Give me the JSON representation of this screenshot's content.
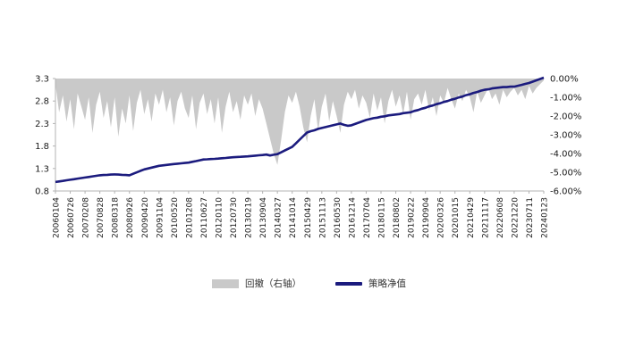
{
  "chart_data": {
    "type": "composite",
    "title": "",
    "subtype": [
      "area-drawdown-right-axis",
      "line-nav-left-axis"
    ],
    "x_tick_labels": [
      "20060104",
      "20060726",
      "20070208",
      "20070828",
      "20080318",
      "20080926",
      "20090420",
      "20091104",
      "20100520",
      "20101208",
      "20110627",
      "20120110",
      "20120730",
      "20130219",
      "20130904",
      "20140327",
      "20141014",
      "20150429",
      "20151113",
      "20160530",
      "20161214",
      "20170704",
      "20180115",
      "20180802",
      "20190222",
      "20190904",
      "20200326",
      "20201015",
      "20210429",
      "20211117",
      "20220608",
      "20221220",
      "20230711",
      "20240123"
    ],
    "left_axis": {
      "min": 0.8,
      "max": 3.3,
      "ticks": [
        0.8,
        1.3,
        1.8,
        2.3,
        2.8,
        3.3
      ],
      "tick_labels": [
        "0.8",
        "1.3",
        "1.8",
        "2.3",
        "2.8",
        "3.3"
      ]
    },
    "right_axis": {
      "min": -6,
      "max": 0,
      "ticks": [
        0,
        -1,
        -2,
        -3,
        -4,
        -5,
        -6
      ],
      "tick_labels": [
        "0.00%",
        "-1.00%",
        "-2.00%",
        "-3.00%",
        "-4.00%",
        "-5.00%",
        "-6.00%"
      ]
    },
    "grid": false,
    "legend_position": "bottom",
    "colors": {
      "drawdown": "#c9c9c9",
      "nav_line": "#1b1b7e",
      "axis": "#b3b3b3",
      "tick_text": "#1a1a1a"
    },
    "series": [
      {
        "name": "回撤（右轴）",
        "type": "area",
        "axis": "right",
        "color": "#c9c9c9",
        "values": [
          -0.3,
          -1.8,
          -0.9,
          -2.3,
          -1.1,
          -2.7,
          -0.8,
          -1.5,
          -2.2,
          -1.0,
          -2.9,
          -1.4,
          -0.7,
          -2.1,
          -1.2,
          -2.6,
          -1.0,
          -3.1,
          -1.6,
          -2.4,
          -0.9,
          -2.8,
          -1.3,
          -0.6,
          -1.9,
          -1.1,
          -2.3,
          -0.8,
          -1.4,
          -0.6,
          -1.8,
          -1.0,
          -2.5,
          -1.2,
          -0.7,
          -1.6,
          -2.1,
          -0.9,
          -2.7,
          -1.3,
          -0.8,
          -1.9,
          -1.1,
          -2.4,
          -1.0,
          -2.9,
          -1.5,
          -0.7,
          -1.8,
          -1.2,
          -2.2,
          -0.9,
          -1.4,
          -0.8,
          -2.0,
          -1.1,
          -1.6,
          -2.4,
          -3.2,
          -4.0,
          -4.6,
          -3.3,
          -1.8,
          -0.9,
          -1.3,
          -0.7,
          -1.5,
          -2.6,
          -3.4,
          -2.0,
          -1.1,
          -2.8,
          -1.5,
          -0.8,
          -2.3,
          -1.2,
          -2.0,
          -2.9,
          -1.4,
          -0.7,
          -1.1,
          -0.6,
          -1.6,
          -0.9,
          -1.3,
          -2.1,
          -0.8,
          -1.7,
          -1.0,
          -2.4,
          -1.2,
          -0.6,
          -1.5,
          -0.9,
          -1.9,
          -0.7,
          -2.2,
          -1.1,
          -0.8,
          -1.4,
          -0.6,
          -1.7,
          -1.0,
          -2.0,
          -0.9,
          -1.3,
          -0.5,
          -1.1,
          -1.6,
          -0.8,
          -1.2,
          -0.6,
          -1.0,
          -1.8,
          -0.7,
          -1.3,
          -0.9,
          -0.5,
          -1.1,
          -0.8,
          -1.4,
          -0.6,
          -1.0,
          -0.7,
          -0.5,
          -0.9,
          -0.6,
          -1.1,
          -0.4,
          -0.8,
          -0.5,
          -0.3,
          -0.1
        ]
      },
      {
        "name": "策略净值",
        "type": "line",
        "axis": "left",
        "color": "#1b1b7e",
        "values": [
          1.0,
          1.012,
          1.025,
          1.038,
          1.05,
          1.062,
          1.075,
          1.088,
          1.1,
          1.112,
          1.125,
          1.138,
          1.15,
          1.155,
          1.16,
          1.165,
          1.17,
          1.165,
          1.16,
          1.155,
          1.15,
          1.182,
          1.215,
          1.248,
          1.28,
          1.3,
          1.32,
          1.34,
          1.36,
          1.37,
          1.38,
          1.39,
          1.4,
          1.408,
          1.415,
          1.423,
          1.43,
          1.448,
          1.465,
          1.483,
          1.5,
          1.505,
          1.51,
          1.515,
          1.52,
          1.528,
          1.535,
          1.543,
          1.55,
          1.555,
          1.56,
          1.565,
          1.57,
          1.578,
          1.585,
          1.593,
          1.6,
          1.61,
          1.59,
          1.605,
          1.62,
          1.66,
          1.7,
          1.74,
          1.78,
          1.86,
          1.94,
          2.02,
          2.1,
          2.13,
          2.15,
          2.18,
          2.2,
          2.22,
          2.24,
          2.26,
          2.28,
          2.3,
          2.27,
          2.25,
          2.26,
          2.29,
          2.32,
          2.35,
          2.38,
          2.4,
          2.42,
          2.43,
          2.45,
          2.46,
          2.48,
          2.49,
          2.5,
          2.51,
          2.53,
          2.54,
          2.55,
          2.58,
          2.6,
          2.63,
          2.65,
          2.68,
          2.7,
          2.73,
          2.75,
          2.78,
          2.8,
          2.83,
          2.85,
          2.88,
          2.9,
          2.93,
          2.95,
          2.98,
          3.0,
          3.03,
          3.05,
          3.06,
          3.08,
          3.09,
          3.1,
          3.11,
          3.11,
          3.12,
          3.12,
          3.14,
          3.16,
          3.18,
          3.2,
          3.23,
          3.26,
          3.29,
          3.32
        ]
      }
    ],
    "legend": [
      {
        "label": "回撤（右轴）"
      },
      {
        "label": "策略净值"
      }
    ]
  }
}
